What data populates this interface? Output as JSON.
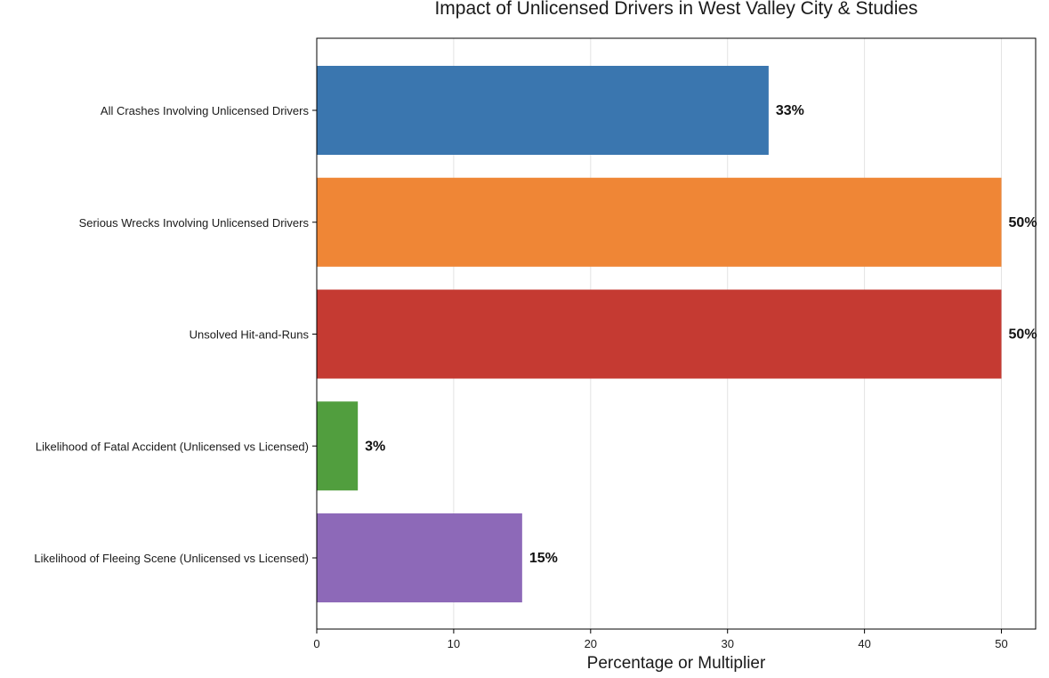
{
  "chart_data": {
    "type": "bar",
    "orientation": "horizontal",
    "title": "Impact of Unlicensed Drivers in West Valley City & Studies",
    "xlabel": "Percentage or Multiplier",
    "ylabel": "",
    "xlim": [
      0,
      52.5
    ],
    "xticks": [
      0,
      10,
      20,
      30,
      40,
      50
    ],
    "grid": "vertical",
    "legend": "none",
    "categories": [
      "All Crashes Involving Unlicensed Drivers",
      "Serious Wrecks Involving Unlicensed Drivers",
      "Unsolved Hit-and-Runs",
      "Likelihood of Fatal Accident (Unlicensed vs Licensed)",
      "Likelihood of Fleeing Scene (Unlicensed vs Licensed)"
    ],
    "values": [
      33,
      50,
      50,
      3,
      15
    ],
    "value_labels": [
      "33%",
      "50%",
      "50%",
      "3%",
      "15%"
    ],
    "colors": [
      "#3a76af",
      "#ef8636",
      "#c53a32",
      "#519e3e",
      "#8d69b8"
    ]
  }
}
